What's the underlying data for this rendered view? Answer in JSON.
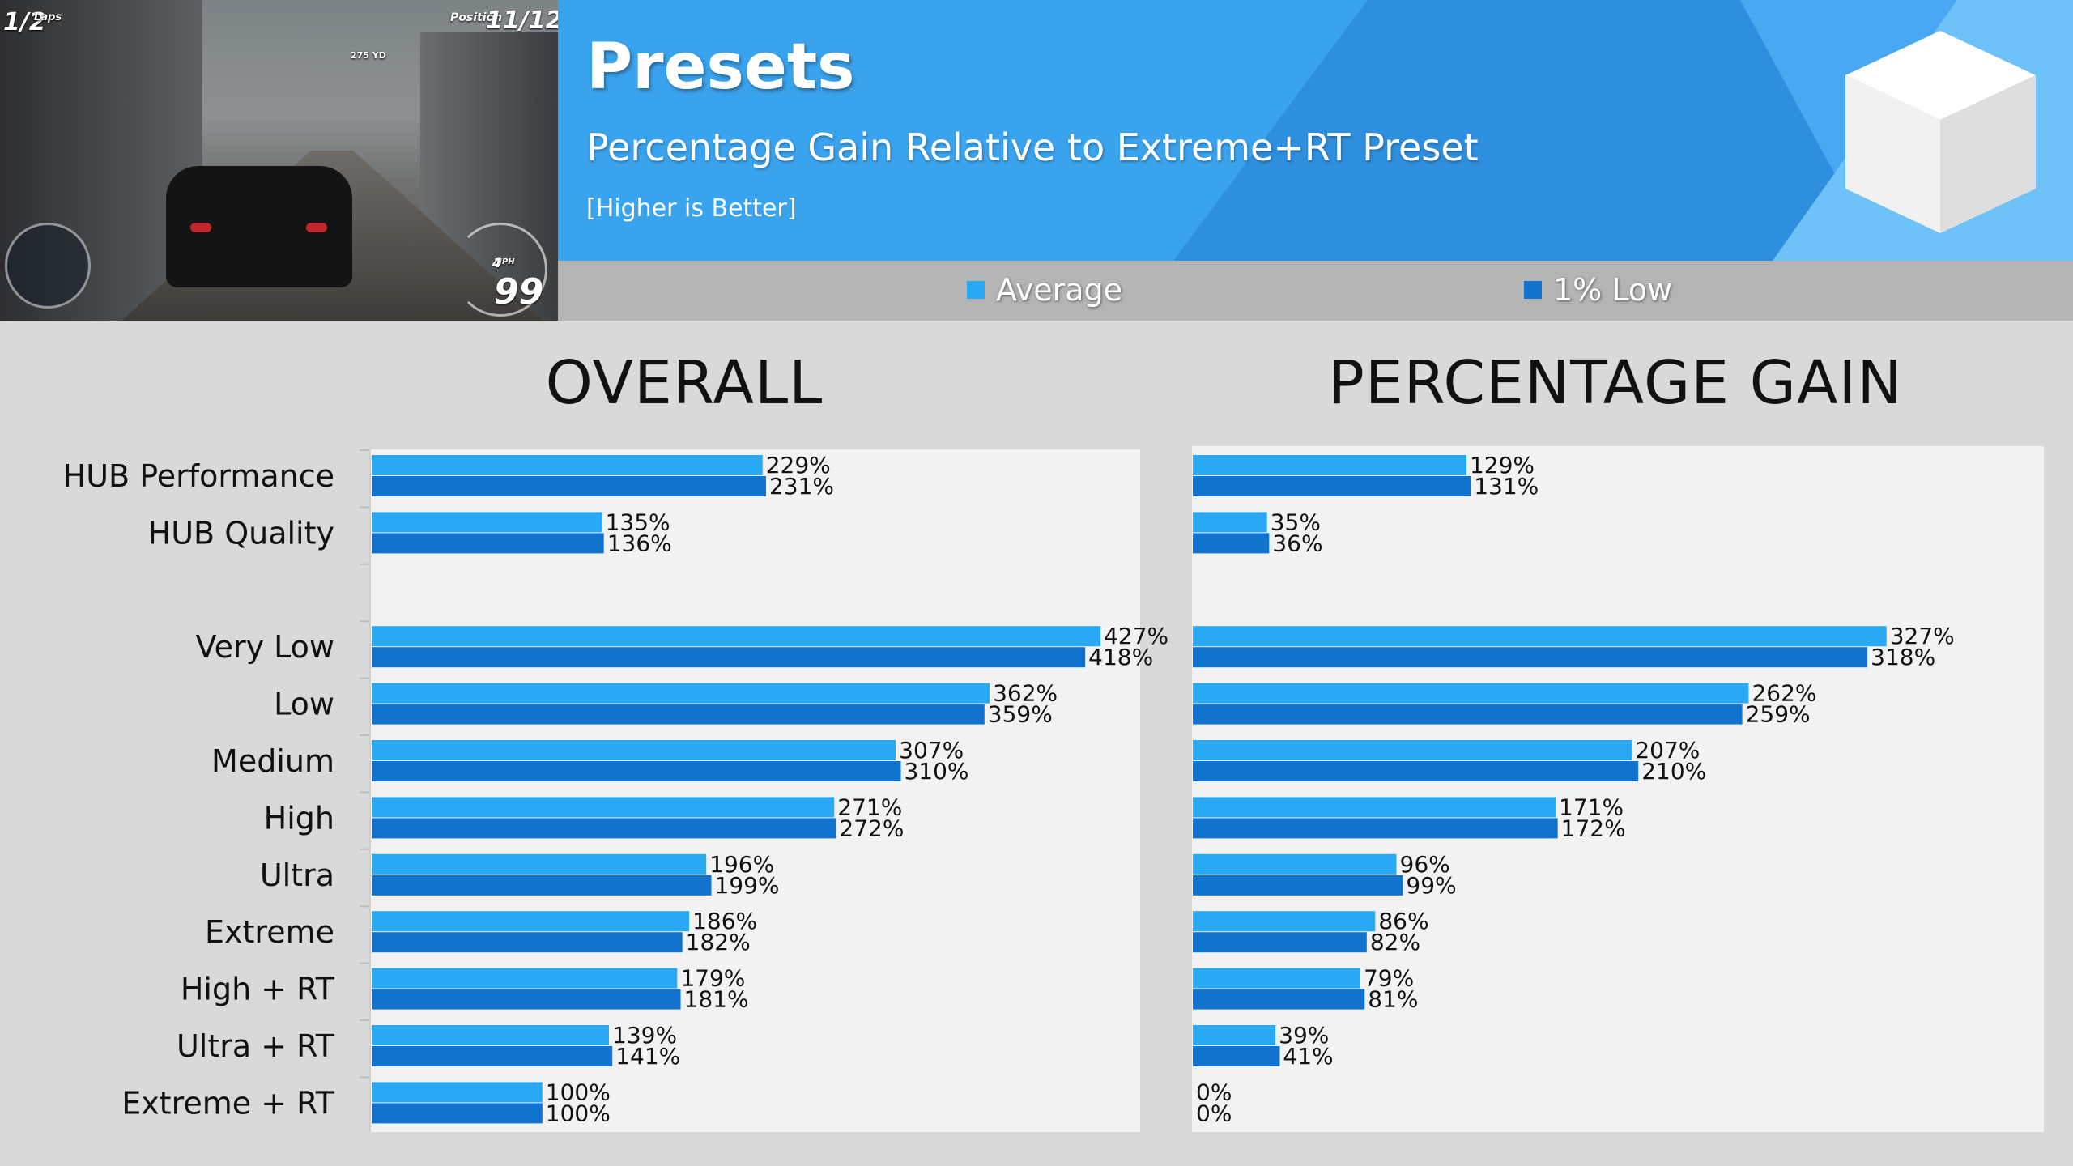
{
  "header": {
    "title": "Presets",
    "subtitle": "Percentage Gain Relative to Extreme+RT Preset",
    "note": "[Higher is Better]"
  },
  "game_hud": {
    "laps": "1/2",
    "laps_label": "Laps",
    "position_label": "Position",
    "position": "11/12",
    "distance": "275 YD",
    "speed": "99",
    "gear": "4",
    "speed_unit": "MPH"
  },
  "legend": [
    {
      "label": "Average",
      "color": "#29a9f4"
    },
    {
      "label": "1% Low",
      "color": "#1273cf"
    }
  ],
  "colors": {
    "average": "#29a9f4",
    "low": "#1273cf"
  },
  "chart_data": [
    {
      "type": "bar",
      "orientation": "horizontal",
      "title": "OVERALL",
      "categories": [
        "HUB Performance",
        "HUB Quality",
        "",
        "Very Low",
        "Low",
        "Medium",
        "High",
        "Ultra",
        "Extreme",
        "High + RT",
        "Ultra + RT",
        "Extreme + RT"
      ],
      "series": [
        {
          "name": "Average",
          "values": [
            229,
            135,
            null,
            427,
            362,
            307,
            271,
            196,
            186,
            179,
            139,
            100
          ]
        },
        {
          "name": "1% Low",
          "values": [
            231,
            136,
            null,
            418,
            359,
            310,
            272,
            199,
            182,
            181,
            141,
            100
          ]
        }
      ],
      "xlim": [
        0,
        450
      ],
      "value_suffix": "%"
    },
    {
      "type": "bar",
      "orientation": "horizontal",
      "title": "PERCENTAGE GAIN",
      "categories": [
        "HUB Performance",
        "HUB Quality",
        "",
        "Very Low",
        "Low",
        "Medium",
        "High",
        "Ultra",
        "Extreme",
        "High + RT",
        "Ultra + RT",
        "Extreme + RT"
      ],
      "series": [
        {
          "name": "Average",
          "values": [
            129,
            35,
            null,
            327,
            262,
            207,
            171,
            96,
            86,
            79,
            39,
            0
          ]
        },
        {
          "name": "1% Low",
          "values": [
            131,
            36,
            null,
            318,
            259,
            210,
            172,
            99,
            82,
            81,
            41,
            0
          ]
        }
      ],
      "xlim": [
        0,
        400
      ],
      "value_suffix": "%"
    }
  ]
}
